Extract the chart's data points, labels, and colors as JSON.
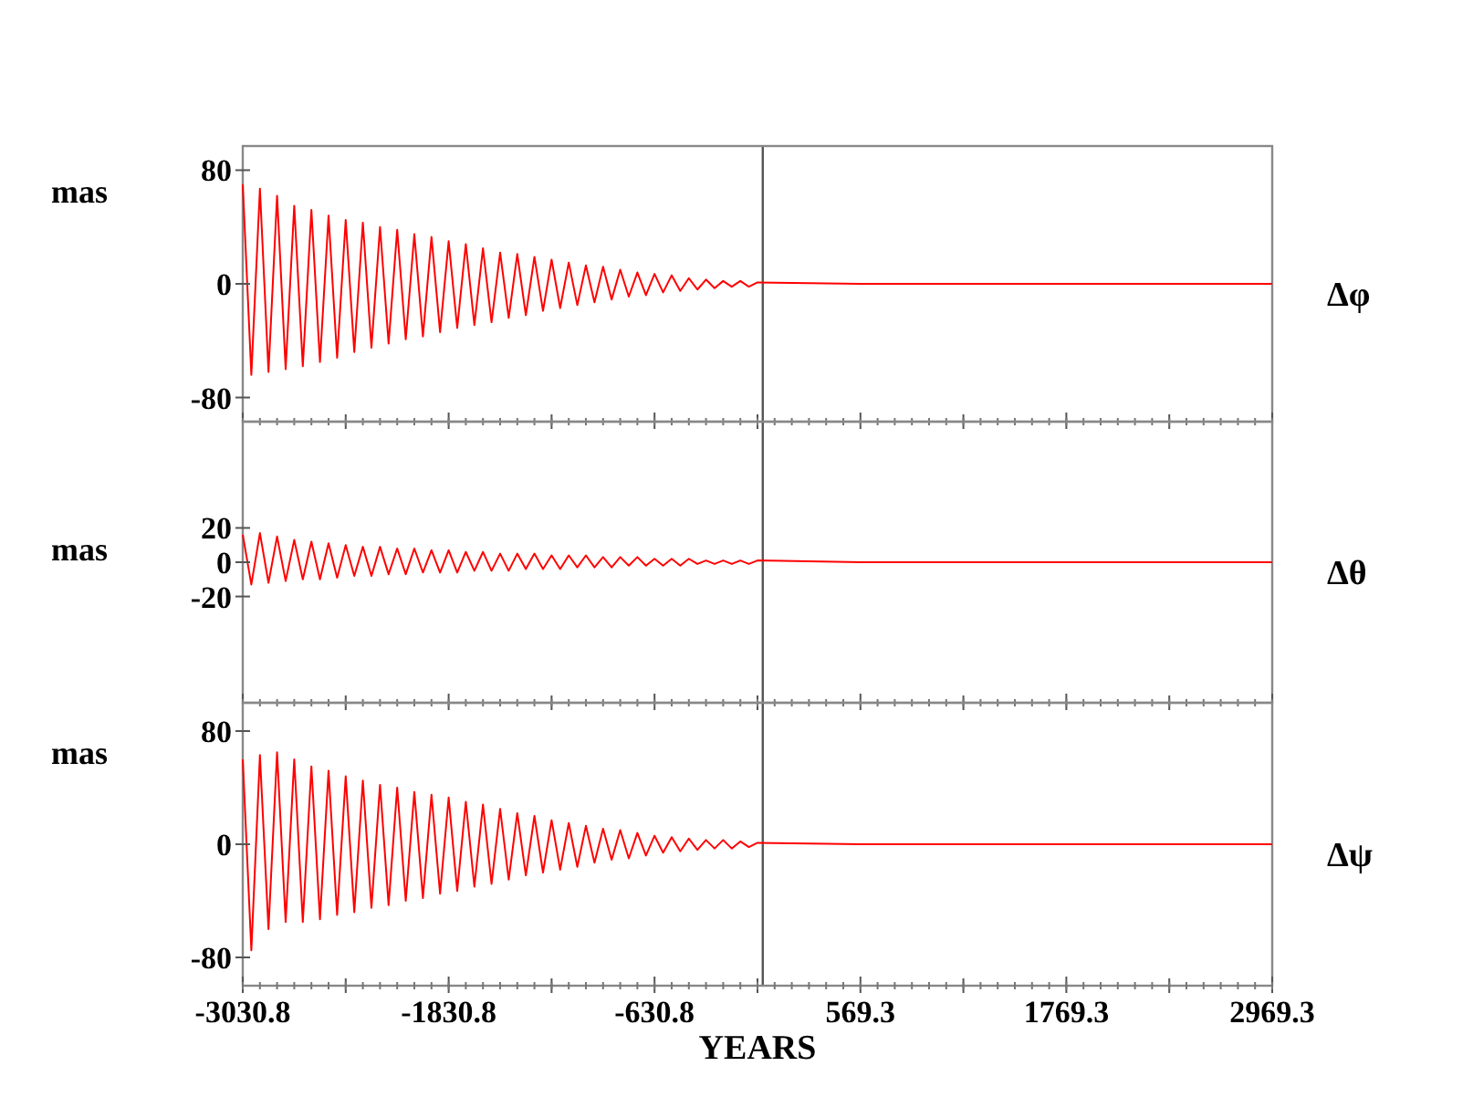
{
  "chart_data": [
    {
      "type": "line",
      "ylabel": "mas",
      "tick_labels": "y",
      "xlim": [
        -3030.8,
        2969.3
      ],
      "xticks": [
        -3030.8,
        {
          "value": -2430.8,
          "label": null
        },
        -1830.8,
        {
          "value": -1230.8,
          "label": null
        },
        -630.8,
        {
          "value": -30.8,
          "label": null
        },
        569.3,
        {
          "value": 1169.3,
          "label": null
        },
        1769.3,
        {
          "value": 2369.3,
          "label": null
        },
        2969.3
      ],
      "ylim": [
        -97,
        97
      ],
      "yticks": [
        -80,
        0,
        80
      ],
      "ref_lines": [
        {
          "axis": "x",
          "value": 0,
          "color": "#555555"
        }
      ],
      "x": [
        -3030.8,
        -2980.8,
        -2930.8,
        -2880.8,
        -2830.8,
        -2780.8,
        -2730.8,
        -2680.8,
        -2630.8,
        -2580.8,
        -2530.8,
        -2480.8,
        -2430.8,
        -2380.8,
        -2330.8,
        -2280.8,
        -2230.8,
        -2180.8,
        -2130.8,
        -2080.8,
        -2030.8,
        -1980.8,
        -1930.8,
        -1880.8,
        -1830.8,
        -1780.8,
        -1730.8,
        -1680.8,
        -1630.8,
        -1580.8,
        -1530.8,
        -1480.8,
        -1430.8,
        -1380.8,
        -1330.8,
        -1280.8,
        -1230.8,
        -1180.8,
        -1130.8,
        -1080.8,
        -1030.8,
        -980.8,
        -930.8,
        -880.8,
        -830.8,
        -780.8,
        -730.8,
        -680.8,
        -630.8,
        -580.8,
        -530.8,
        -480.8,
        -430.8,
        -380.8,
        -330.8,
        -280.8,
        -230.8,
        -180.8,
        -130.8,
        -80.8,
        -30.8,
        569.3,
        1169.3,
        1769.3,
        2369.3,
        2969.3
      ],
      "series": [
        {
          "name": "Δφ",
          "color": "#ff0000",
          "values": [
            70,
            -64,
            67,
            -62,
            62,
            -60,
            55,
            -58,
            52,
            -55,
            48,
            -52,
            45,
            -48,
            43,
            -45,
            40,
            -42,
            38,
            -39,
            35,
            -37,
            33,
            -34,
            30,
            -31,
            28,
            -29,
            25,
            -27,
            22,
            -24,
            21,
            -22,
            19,
            -19,
            17,
            -17,
            15,
            -15,
            13,
            -13,
            12,
            -11,
            10,
            -9,
            8,
            -8,
            7,
            -6,
            6,
            -5,
            4,
            -4,
            3,
            -3,
            2,
            -2,
            2,
            -2,
            1,
            0,
            0,
            0,
            0,
            0
          ]
        }
      ]
    },
    {
      "type": "line",
      "ylabel": "mas",
      "tick_labels": "y",
      "xlim": [
        -3030.8,
        2969.3
      ],
      "xticks": [
        -3030.8,
        {
          "value": -2430.8,
          "label": null
        },
        -1830.8,
        {
          "value": -1230.8,
          "label": null
        },
        -630.8,
        {
          "value": -30.8,
          "label": null
        },
        569.3,
        {
          "value": 1169.3,
          "label": null
        },
        1769.3,
        {
          "value": 2369.3,
          "label": null
        },
        2969.3
      ],
      "ylim": [
        -82,
        82
      ],
      "yticks": [
        -20,
        0,
        20
      ],
      "ref_lines": [
        {
          "axis": "x",
          "value": 0,
          "color": "#555555"
        }
      ],
      "x": [
        -3030.8,
        -2980.8,
        -2930.8,
        -2880.8,
        -2830.8,
        -2780.8,
        -2730.8,
        -2680.8,
        -2630.8,
        -2580.8,
        -2530.8,
        -2480.8,
        -2430.8,
        -2380.8,
        -2330.8,
        -2280.8,
        -2230.8,
        -2180.8,
        -2130.8,
        -2080.8,
        -2030.8,
        -1980.8,
        -1930.8,
        -1880.8,
        -1830.8,
        -1780.8,
        -1730.8,
        -1680.8,
        -1630.8,
        -1580.8,
        -1530.8,
        -1480.8,
        -1430.8,
        -1380.8,
        -1330.8,
        -1280.8,
        -1230.8,
        -1180.8,
        -1130.8,
        -1080.8,
        -1030.8,
        -980.8,
        -930.8,
        -880.8,
        -830.8,
        -780.8,
        -730.8,
        -680.8,
        -630.8,
        -580.8,
        -530.8,
        -480.8,
        -430.8,
        -380.8,
        -330.8,
        -280.8,
        -230.8,
        -180.8,
        -130.8,
        -80.8,
        -30.8,
        569.3,
        1169.3,
        1769.3,
        2369.3,
        2969.3
      ],
      "series": [
        {
          "name": "Δθ",
          "color": "#ff0000",
          "values": [
            16,
            -13,
            17,
            -12,
            15,
            -11,
            13,
            -10,
            12,
            -10,
            11,
            -9,
            10,
            -8,
            9,
            -8,
            9,
            -7,
            8,
            -7,
            8,
            -6,
            7,
            -6,
            7,
            -6,
            6,
            -5,
            6,
            -5,
            5,
            -5,
            5,
            -4,
            5,
            -4,
            4,
            -4,
            4,
            -3,
            4,
            -3,
            3,
            -3,
            3,
            -2,
            3,
            -2,
            2,
            -2,
            2,
            -2,
            2,
            -1,
            1,
            -1,
            1,
            -1,
            1,
            -1,
            1,
            0,
            0,
            0,
            0,
            0
          ]
        }
      ]
    },
    {
      "type": "line",
      "ylabel": "mas",
      "xlabel": "YEARS",
      "xlim": [
        -3030.8,
        2969.3
      ],
      "xticks": [
        -3030.8,
        {
          "value": -2430.8,
          "label": null
        },
        -1830.8,
        {
          "value": -1230.8,
          "label": null
        },
        -630.8,
        {
          "value": -30.8,
          "label": null
        },
        569.3,
        {
          "value": 1169.3,
          "label": null
        },
        1769.3,
        {
          "value": 2369.3,
          "label": null
        },
        2969.3
      ],
      "ylim": [
        -100,
        100
      ],
      "yticks": [
        -80,
        0,
        80
      ],
      "ref_lines": [
        {
          "axis": "x",
          "value": 0,
          "color": "#555555"
        }
      ],
      "x": [
        -3030.8,
        -2980.8,
        -2930.8,
        -2880.8,
        -2830.8,
        -2780.8,
        -2730.8,
        -2680.8,
        -2630.8,
        -2580.8,
        -2530.8,
        -2480.8,
        -2430.8,
        -2380.8,
        -2330.8,
        -2280.8,
        -2230.8,
        -2180.8,
        -2130.8,
        -2080.8,
        -2030.8,
        -1980.8,
        -1930.8,
        -1880.8,
        -1830.8,
        -1780.8,
        -1730.8,
        -1680.8,
        -1630.8,
        -1580.8,
        -1530.8,
        -1480.8,
        -1430.8,
        -1380.8,
        -1330.8,
        -1280.8,
        -1230.8,
        -1180.8,
        -1130.8,
        -1080.8,
        -1030.8,
        -980.8,
        -930.8,
        -880.8,
        -830.8,
        -780.8,
        -730.8,
        -680.8,
        -630.8,
        -580.8,
        -530.8,
        -480.8,
        -430.8,
        -380.8,
        -330.8,
        -280.8,
        -230.8,
        -180.8,
        -130.8,
        -80.8,
        -30.8,
        569.3,
        1169.3,
        1769.3,
        2369.3,
        2969.3
      ],
      "series": [
        {
          "name": "Δψ",
          "color": "#ff0000",
          "values": [
            60,
            -75,
            63,
            -60,
            65,
            -55,
            60,
            -55,
            55,
            -53,
            52,
            -50,
            48,
            -48,
            45,
            -45,
            42,
            -43,
            40,
            -40,
            37,
            -38,
            35,
            -35,
            33,
            -33,
            30,
            -30,
            28,
            -28,
            25,
            -25,
            22,
            -22,
            20,
            -20,
            17,
            -18,
            15,
            -16,
            13,
            -13,
            11,
            -11,
            10,
            -10,
            8,
            -8,
            6,
            -6,
            5,
            -5,
            4,
            -4,
            3,
            -3,
            3,
            -3,
            2,
            -2,
            1,
            0,
            0,
            0,
            0,
            0
          ]
        }
      ]
    }
  ]
}
